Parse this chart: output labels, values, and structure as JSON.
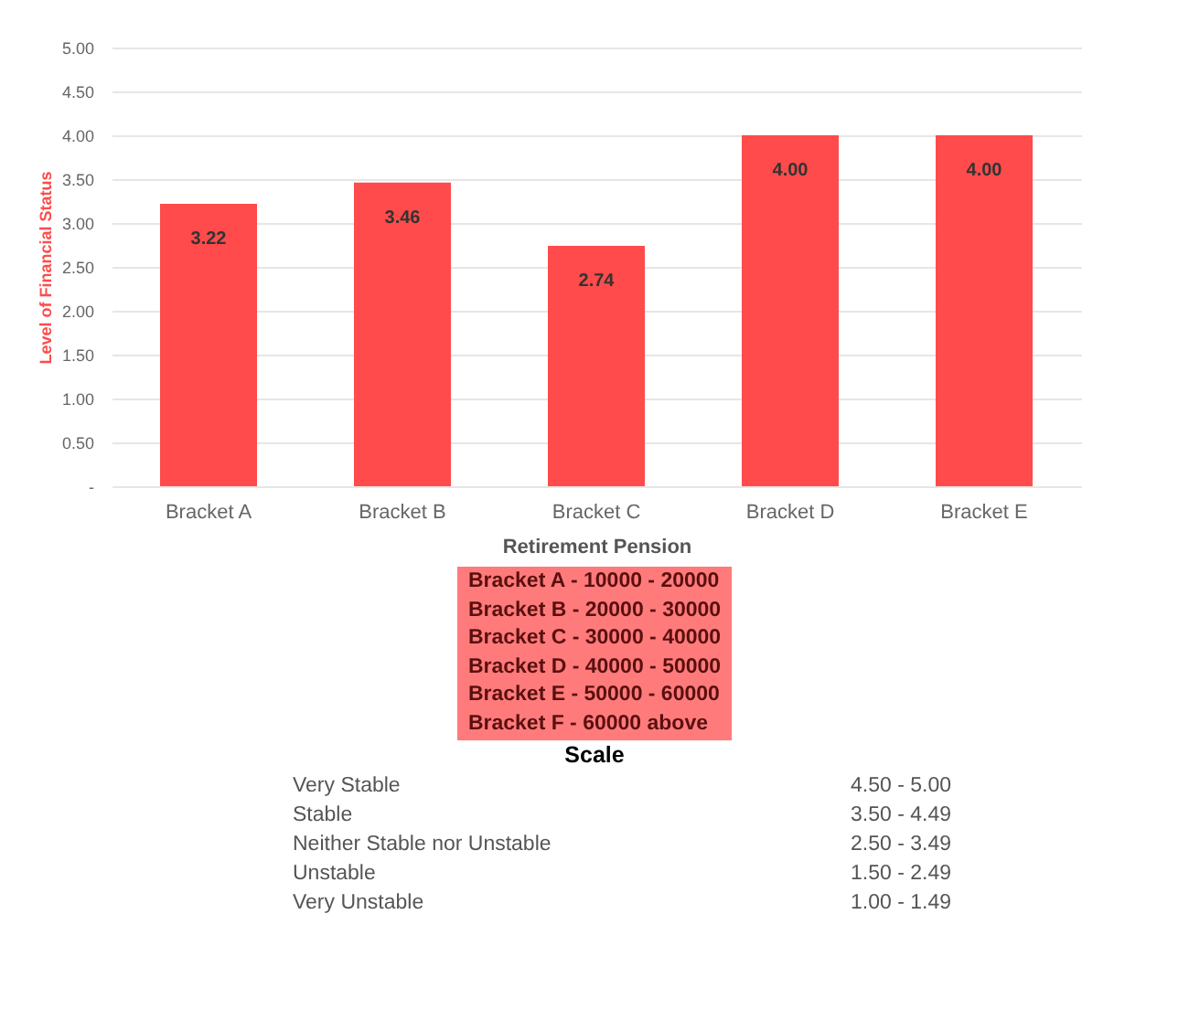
{
  "chart_data": {
    "type": "bar",
    "xlabel": "Retirement Pension",
    "ylabel": "Level of Financial Status",
    "categories": [
      "Bracket A",
      "Bracket B",
      "Bracket C",
      "Bracket D",
      "Bracket E"
    ],
    "values": [
      3.22,
      3.46,
      2.74,
      4.0,
      4.0
    ],
    "value_labels": [
      "3.22",
      "3.46",
      "2.74",
      "4.00",
      "4.00"
    ],
    "color": "#ff4b4b",
    "ylim": [
      0,
      5
    ],
    "yticks": [
      {
        "value": 0,
        "label": "-"
      },
      {
        "value": 0.5,
        "label": "0.50"
      },
      {
        "value": 1,
        "label": "1.00"
      },
      {
        "value": 1.5,
        "label": "1.50"
      },
      {
        "value": 2,
        "label": "2.00"
      },
      {
        "value": 2.5,
        "label": "2.50"
      },
      {
        "value": 3,
        "label": "3.00"
      },
      {
        "value": 3.5,
        "label": "3.50"
      },
      {
        "value": 4,
        "label": "4.00"
      },
      {
        "value": 4.5,
        "label": "4.50"
      },
      {
        "value": 5,
        "label": "5.00"
      }
    ],
    "grid": "y",
    "annotations": [
      "Bracket A -  10000 - 20000",
      "Bracket B -  20000 - 30000",
      "Bracket C -  30000 - 40000",
      "Bracket D -  40000 - 50000",
      "Bracket E -  50000 - 60000",
      "Bracket F -  60000 above",
      "Scale",
      "Very Stable",
      "4.50 - 5.00",
      "Stable",
      "3.50 - 4.49",
      "Neither Stable nor Unstable",
      "2.50 - 3.49",
      "Unstable",
      "1.50 - 2.49",
      "Very Unstable",
      "1.00 - 1.49"
    ]
  }
}
